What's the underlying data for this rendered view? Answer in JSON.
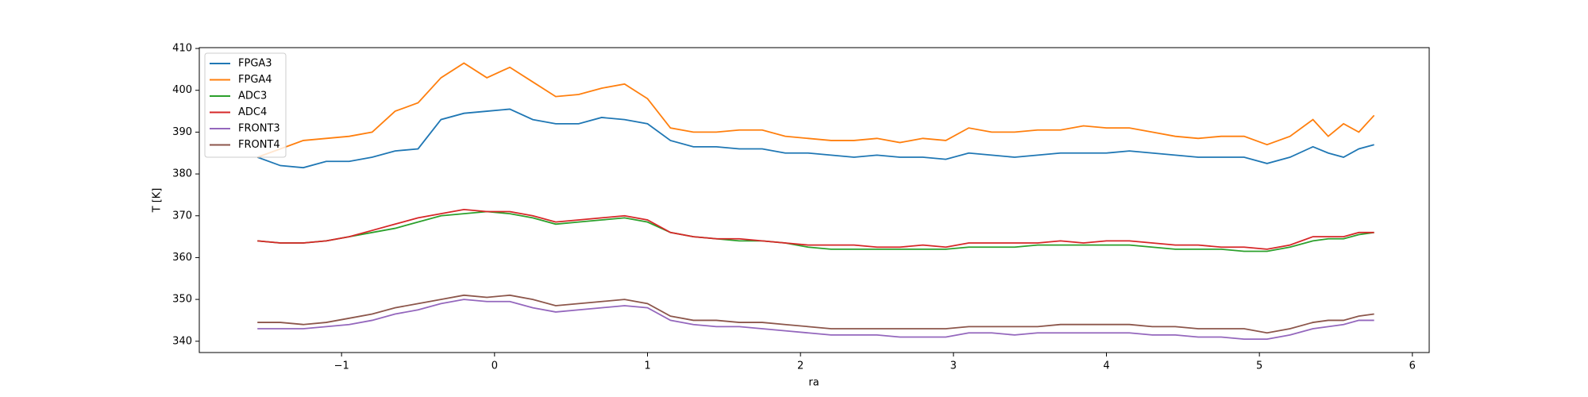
{
  "chart_data": {
    "type": "line",
    "xlabel": "ra",
    "ylabel": "T [K]",
    "x": [
      -1.55,
      -1.4,
      -1.25,
      -1.1,
      -0.95,
      -0.8,
      -0.65,
      -0.5,
      -0.35,
      -0.2,
      -0.05,
      0.1,
      0.25,
      0.4,
      0.55,
      0.7,
      0.85,
      1.0,
      1.15,
      1.3,
      1.45,
      1.6,
      1.75,
      1.9,
      2.05,
      2.2,
      2.35,
      2.5,
      2.65,
      2.8,
      2.95,
      3.1,
      3.25,
      3.4,
      3.55,
      3.7,
      3.85,
      4.0,
      4.15,
      4.3,
      4.45,
      4.6,
      4.75,
      4.9,
      5.05,
      5.2,
      5.35,
      5.45,
      5.55,
      5.65,
      5.75
    ],
    "series": [
      {
        "name": "FPGA3",
        "color": "#1f77b4",
        "values": [
          384,
          382,
          381.5,
          383,
          383,
          384,
          385.5,
          386,
          393,
          394.5,
          395,
          395.5,
          393,
          392,
          392,
          393.5,
          393,
          392,
          388,
          386.5,
          386.5,
          386,
          386,
          385,
          385,
          384.5,
          384,
          384.5,
          384,
          384,
          383.5,
          385,
          384.5,
          384,
          384.5,
          385,
          385,
          385,
          385.5,
          385,
          384.5,
          384,
          384,
          384,
          382.5,
          384,
          386.5,
          385,
          384,
          386,
          387
        ]
      },
      {
        "name": "FPGA4",
        "color": "#ff7f0e",
        "values": [
          384,
          386,
          388,
          388.5,
          389,
          390,
          395,
          397,
          403,
          406.5,
          403,
          405.5,
          402,
          398.5,
          399,
          400.5,
          401.5,
          398,
          391,
          390,
          390,
          390.5,
          390.5,
          389,
          388.5,
          388,
          388,
          388.5,
          387.5,
          388.5,
          388,
          391,
          390,
          390,
          390.5,
          390.5,
          391.5,
          391,
          391,
          390,
          389,
          388.5,
          389,
          389,
          387,
          389,
          393,
          389,
          392,
          390,
          394
        ]
      },
      {
        "name": "ADC3",
        "color": "#2ca02c",
        "values": [
          364,
          363.5,
          363.5,
          364,
          365,
          366,
          367,
          368.5,
          370,
          370.5,
          371,
          370.5,
          369.5,
          368,
          368.5,
          369,
          369.5,
          368.5,
          366,
          365,
          364.5,
          364,
          364,
          363.5,
          362.5,
          362,
          362,
          362,
          362,
          362,
          362,
          362.5,
          362.5,
          362.5,
          363,
          363,
          363,
          363,
          363,
          362.5,
          362,
          362,
          362,
          361.5,
          361.5,
          362.5,
          364,
          364.5,
          364.5,
          365.5,
          366
        ]
      },
      {
        "name": "ADC4",
        "color": "#d62728",
        "values": [
          364,
          363.5,
          363.5,
          364,
          365,
          366.5,
          368,
          369.5,
          370.5,
          371.5,
          371,
          371,
          370,
          368.5,
          369,
          369.5,
          370,
          369,
          366,
          365,
          364.5,
          364.5,
          364,
          363.5,
          363,
          363,
          363,
          362.5,
          362.5,
          363,
          362.5,
          363.5,
          363.5,
          363.5,
          363.5,
          364,
          363.5,
          364,
          364,
          363.5,
          363,
          363,
          362.5,
          362.5,
          362,
          363,
          365,
          365,
          365,
          366,
          366
        ]
      },
      {
        "name": "FRONT3",
        "color": "#9467bd",
        "values": [
          343,
          343,
          343,
          343.5,
          344,
          345,
          346.5,
          347.5,
          349,
          350,
          349.5,
          349.5,
          348,
          347,
          347.5,
          348,
          348.5,
          348,
          345,
          344,
          343.5,
          343.5,
          343,
          342.5,
          342,
          341.5,
          341.5,
          341.5,
          341,
          341,
          341,
          342,
          342,
          341.5,
          342,
          342,
          342,
          342,
          342,
          341.5,
          341.5,
          341,
          341,
          340.5,
          340.5,
          341.5,
          343,
          343.5,
          344,
          345,
          345
        ]
      },
      {
        "name": "FRONT4",
        "color": "#8c564b",
        "values": [
          344.5,
          344.5,
          344,
          344.5,
          345.5,
          346.5,
          348,
          349,
          350,
          351,
          350.5,
          351,
          350,
          348.5,
          349,
          349.5,
          350,
          349,
          346,
          345,
          345,
          344.5,
          344.5,
          344,
          343.5,
          343,
          343,
          343,
          343,
          343,
          343,
          343.5,
          343.5,
          343.5,
          343.5,
          344,
          344,
          344,
          344,
          343.5,
          343.5,
          343,
          343,
          343,
          342,
          343,
          344.5,
          345,
          345,
          346,
          346.5
        ]
      }
    ],
    "xlim": [
      -1.93,
      6.11
    ],
    "xticks": [
      {
        "value": -1,
        "label": "−1"
      },
      0,
      1,
      2,
      3,
      4,
      5,
      6
    ],
    "ylim": [
      337.3,
      410.2
    ],
    "yticks": [
      340,
      350,
      360,
      370,
      380,
      390,
      400,
      410
    ],
    "legend": "upper left",
    "grid": false
  }
}
